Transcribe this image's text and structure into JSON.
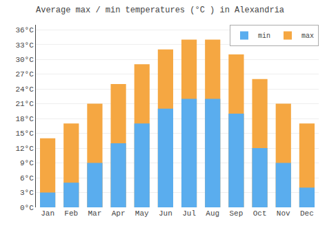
{
  "chart_data": {
    "type": "bar",
    "title": "Average max / min temperatures (°C ) in Alexandria",
    "categories": [
      "Jan",
      "Feb",
      "Mar",
      "Apr",
      "May",
      "Jun",
      "Jul",
      "Aug",
      "Sep",
      "Oct",
      "Nov",
      "Dec"
    ],
    "series": [
      {
        "name": "max",
        "color": "#f5a742",
        "values": [
          14,
          17,
          21,
          25,
          29,
          32,
          34,
          34,
          31,
          26,
          21,
          17
        ]
      },
      {
        "name": "min",
        "color": "#5aadee",
        "values": [
          3,
          5,
          9,
          13,
          17,
          20,
          22,
          22,
          19,
          12,
          9,
          4
        ]
      }
    ],
    "ylim": [
      0,
      37
    ],
    "yticks": [
      {
        "value": 0,
        "label": "0°C"
      },
      {
        "value": 3,
        "label": "3°C"
      },
      {
        "value": 6,
        "label": "6°C"
      },
      {
        "value": 9,
        "label": "9°C"
      },
      {
        "value": 12,
        "label": "12°C"
      },
      {
        "value": 15,
        "label": "15°C"
      },
      {
        "value": 18,
        "label": "18°C"
      },
      {
        "value": 21,
        "label": "21°C"
      },
      {
        "value": 24,
        "label": "24°C"
      },
      {
        "value": 27,
        "label": "27°C"
      },
      {
        "value": 30,
        "label": "30°C"
      },
      {
        "value": 33,
        "label": "33°C"
      },
      {
        "value": 36,
        "label": "36°C"
      }
    ],
    "grid": true,
    "legend": "upper right"
  }
}
